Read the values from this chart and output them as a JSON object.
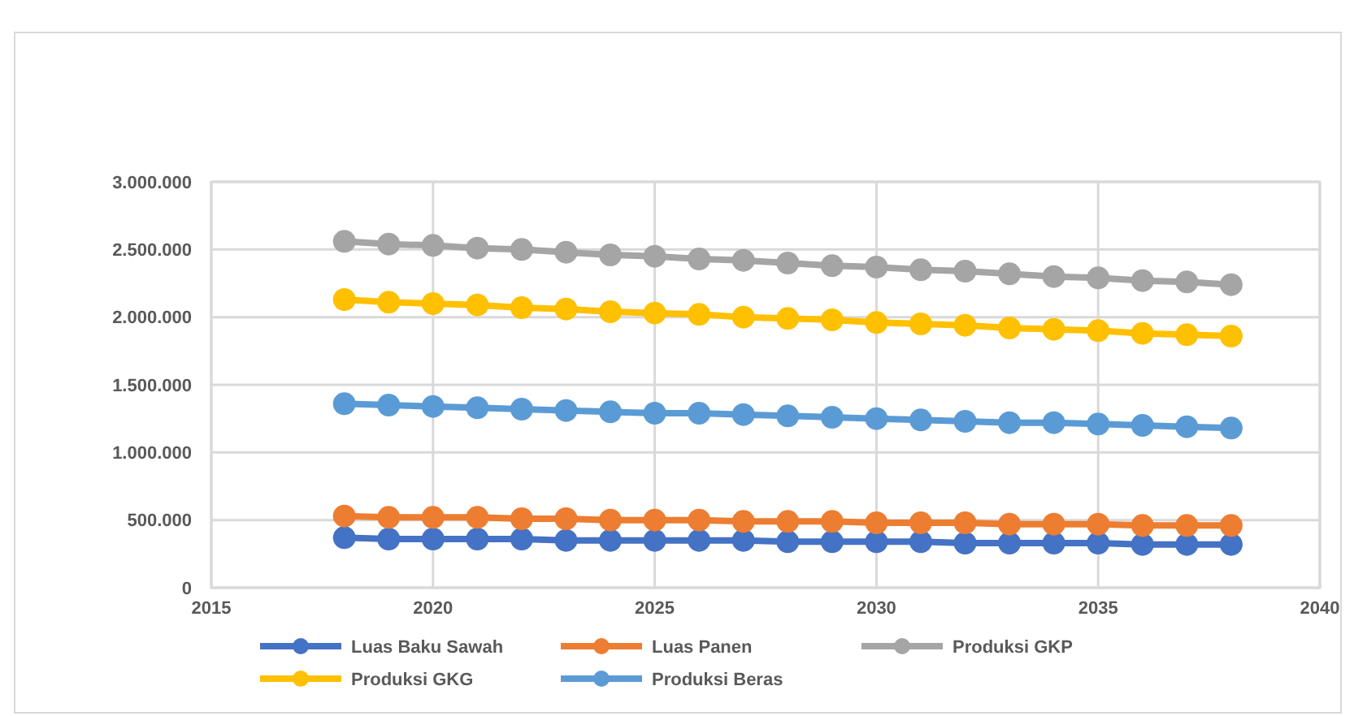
{
  "chart_data": {
    "type": "line",
    "x": [
      2018,
      2019,
      2020,
      2021,
      2022,
      2023,
      2024,
      2025,
      2026,
      2027,
      2028,
      2029,
      2030,
      2031,
      2032,
      2033,
      2034,
      2035,
      2036,
      2037,
      2038
    ],
    "series": [
      {
        "name": "Luas Baku Sawah",
        "color": "#4472c4",
        "values": [
          370000,
          360000,
          360000,
          360000,
          360000,
          350000,
          350000,
          350000,
          350000,
          350000,
          340000,
          340000,
          340000,
          340000,
          330000,
          330000,
          330000,
          330000,
          320000,
          320000,
          320000
        ]
      },
      {
        "name": "Luas Panen",
        "color": "#ed7d31",
        "values": [
          530000,
          520000,
          520000,
          520000,
          510000,
          510000,
          500000,
          500000,
          500000,
          490000,
          490000,
          490000,
          480000,
          480000,
          480000,
          470000,
          470000,
          470000,
          460000,
          460000,
          460000
        ]
      },
      {
        "name": "Produksi GKP",
        "color": "#a5a5a5",
        "values": [
          2560000,
          2540000,
          2530000,
          2510000,
          2500000,
          2480000,
          2460000,
          2450000,
          2430000,
          2420000,
          2400000,
          2380000,
          2370000,
          2350000,
          2340000,
          2320000,
          2300000,
          2290000,
          2270000,
          2260000,
          2240000
        ]
      },
      {
        "name": "Produksi GKG",
        "color": "#ffc000",
        "values": [
          2130000,
          2110000,
          2100000,
          2090000,
          2070000,
          2060000,
          2040000,
          2030000,
          2020000,
          2000000,
          1990000,
          1980000,
          1960000,
          1950000,
          1940000,
          1920000,
          1910000,
          1900000,
          1880000,
          1870000,
          1860000
        ]
      },
      {
        "name": "Produksi Beras",
        "color": "#5b9bd5",
        "values": [
          1360000,
          1350000,
          1340000,
          1330000,
          1320000,
          1310000,
          1300000,
          1290000,
          1290000,
          1280000,
          1270000,
          1260000,
          1250000,
          1240000,
          1230000,
          1220000,
          1220000,
          1210000,
          1200000,
          1190000,
          1180000
        ]
      }
    ],
    "xlim": [
      2015,
      2040
    ],
    "xticks": [
      2015,
      2020,
      2025,
      2030,
      2035,
      2040
    ],
    "ylim": [
      0,
      3000000
    ],
    "yticks": [
      0,
      {
        "value": 500000,
        "label": "500.000"
      },
      {
        "value": 1000000,
        "label": "1.000.000"
      },
      {
        "value": 1500000,
        "label": "1.500.000"
      },
      {
        "value": 2000000,
        "label": "2.000.000"
      },
      {
        "value": 2500000,
        "label": "2.500.000"
      },
      {
        "value": 3000000,
        "label": "3.000.000"
      }
    ],
    "grid": true,
    "legend": "bottom",
    "marker": "circle",
    "line_style": "solid"
  }
}
